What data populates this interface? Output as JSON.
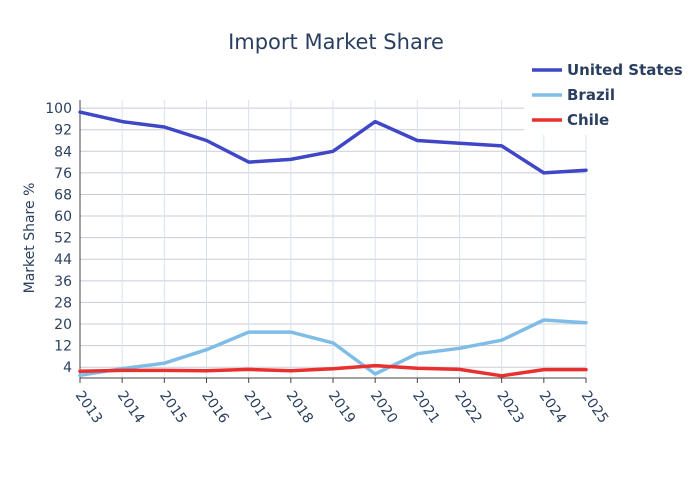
{
  "chart_data": {
    "type": "line",
    "title": "Import Market Share",
    "xlabel": "",
    "ylabel": "Market Share %",
    "x": [
      2013,
      2014,
      2015,
      2016,
      2017,
      2018,
      2019,
      2020,
      2021,
      2022,
      2023,
      2024,
      2025
    ],
    "y_ticks": [
      4,
      12,
      20,
      28,
      36,
      44,
      52,
      60,
      68,
      76,
      84,
      92,
      100
    ],
    "ylim": [
      0,
      103
    ],
    "grid": true,
    "legend_position": "top-right",
    "series": [
      {
        "name": "United States",
        "color": "#3f47c6",
        "values": [
          98.5,
          95,
          93,
          88,
          80,
          81,
          84,
          95,
          88,
          87,
          86,
          76,
          77
        ]
      },
      {
        "name": "Brazil",
        "color": "#7fbde6",
        "values": [
          1,
          3.5,
          5.5,
          10.5,
          17,
          17,
          13,
          1.5,
          9,
          11,
          14,
          21.5,
          20.5
        ]
      },
      {
        "name": "Chile",
        "color": "#e8302f",
        "values": [
          2.5,
          2.8,
          2.8,
          2.7,
          3.2,
          2.7,
          3.4,
          4.6,
          3.6,
          3.2,
          0.8,
          3.1,
          3.1
        ]
      }
    ]
  }
}
